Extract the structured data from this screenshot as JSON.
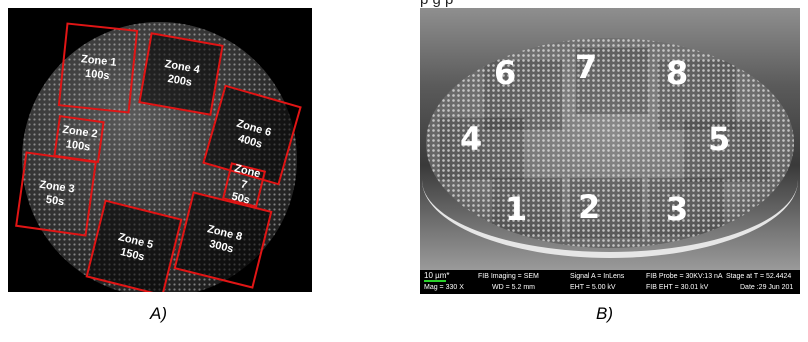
{
  "panel_a": {
    "label": "A)",
    "zones": [
      {
        "name": "Zone 1",
        "time": "100s"
      },
      {
        "name": "Zone 2",
        "time": "100s"
      },
      {
        "name": "Zone 3",
        "time": "50s"
      },
      {
        "name": "Zone 4",
        "time": "200s"
      },
      {
        "name": "Zone 5",
        "time": "150s"
      },
      {
        "name": "Zone 6",
        "time": "400s"
      },
      {
        "name": "Zone 7",
        "time": "50s"
      },
      {
        "name": "Zone 8",
        "time": "300s"
      }
    ]
  },
  "panel_b": {
    "label": "B)",
    "top_text": "p      g         p",
    "zone_numbers": [
      "1",
      "2",
      "3",
      "4",
      "5",
      "6",
      "7",
      "8"
    ],
    "info_bar": {
      "scale": "10 µm*",
      "mag": "Mag =   330 X",
      "fib_imaging": "FIB Imaging = SEM",
      "wd": "WD =  5.2 mm",
      "signal": "Signal A = InLens",
      "eht": "EHT =  5.00 kV",
      "fib_probe": "FIB Probe = 30KV:13 nA",
      "fib_eht": "FIB EHT = 30.01 kV",
      "stage": "Stage at T =  52.4424",
      "date": "Date :29 Jun 201"
    }
  }
}
